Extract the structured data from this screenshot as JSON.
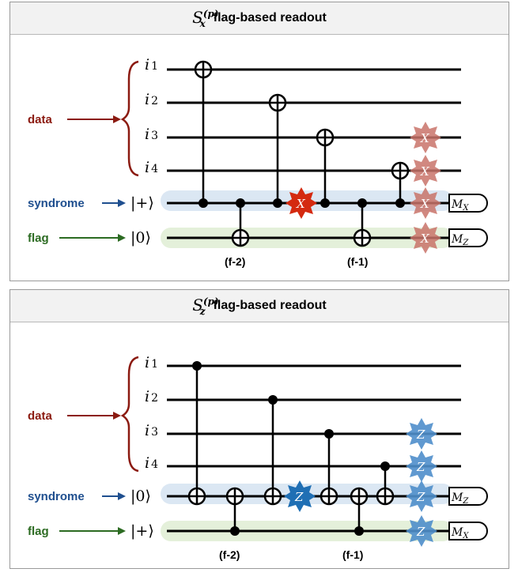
{
  "panels": [
    {
      "id": "x",
      "symbol": "S",
      "symbol_sup": "(p)",
      "symbol_sub": "x",
      "title": "flag-based readout",
      "qubits": [
        "i",
        "i",
        "i",
        "i"
      ],
      "qubit_subscripts": [
        "1",
        "2",
        "3",
        "4"
      ],
      "side_labels": {
        "data": "data",
        "syndrome": "syndrome",
        "flag": "flag"
      },
      "syndrome_ket": "|+⟩",
      "flag_ket": "|0⟩",
      "steps": [
        "(f-2)",
        "(f-1)"
      ],
      "measure_syndrome": "M",
      "measure_syndrome_sub": "X",
      "measure_flag": "M",
      "measure_flag_sub": "Z",
      "error_symbol": "X",
      "colors": {
        "error": "#d42a10",
        "error_faded": "#c9746a",
        "syndrome_band": "#dbe7f3",
        "flag_band": "#e4f0da"
      }
    },
    {
      "id": "z",
      "symbol": "S",
      "symbol_sup": "(p)",
      "symbol_sub": "z",
      "title": "flag-based readout",
      "qubits": [
        "i",
        "i",
        "i",
        "i"
      ],
      "qubit_subscripts": [
        "1",
        "2",
        "3",
        "4"
      ],
      "side_labels": {
        "data": "data",
        "syndrome": "syndrome",
        "flag": "flag"
      },
      "syndrome_ket": "|0⟩",
      "flag_ket": "|+⟩",
      "steps": [
        "(f-2)",
        "(f-1)"
      ],
      "measure_syndrome": "M",
      "measure_syndrome_sub": "Z",
      "measure_flag": "M",
      "measure_flag_sub": "X",
      "error_symbol": "Z",
      "colors": {
        "error": "#1f6fb4",
        "error_faded": "#4f8fcb",
        "syndrome_band": "#dbe7f3",
        "flag_band": "#e4f0da"
      }
    }
  ],
  "colors": {
    "data_label": "#8b1a10",
    "syndrome_label": "#1f4f8f",
    "flag_label": "#2c6b22"
  }
}
